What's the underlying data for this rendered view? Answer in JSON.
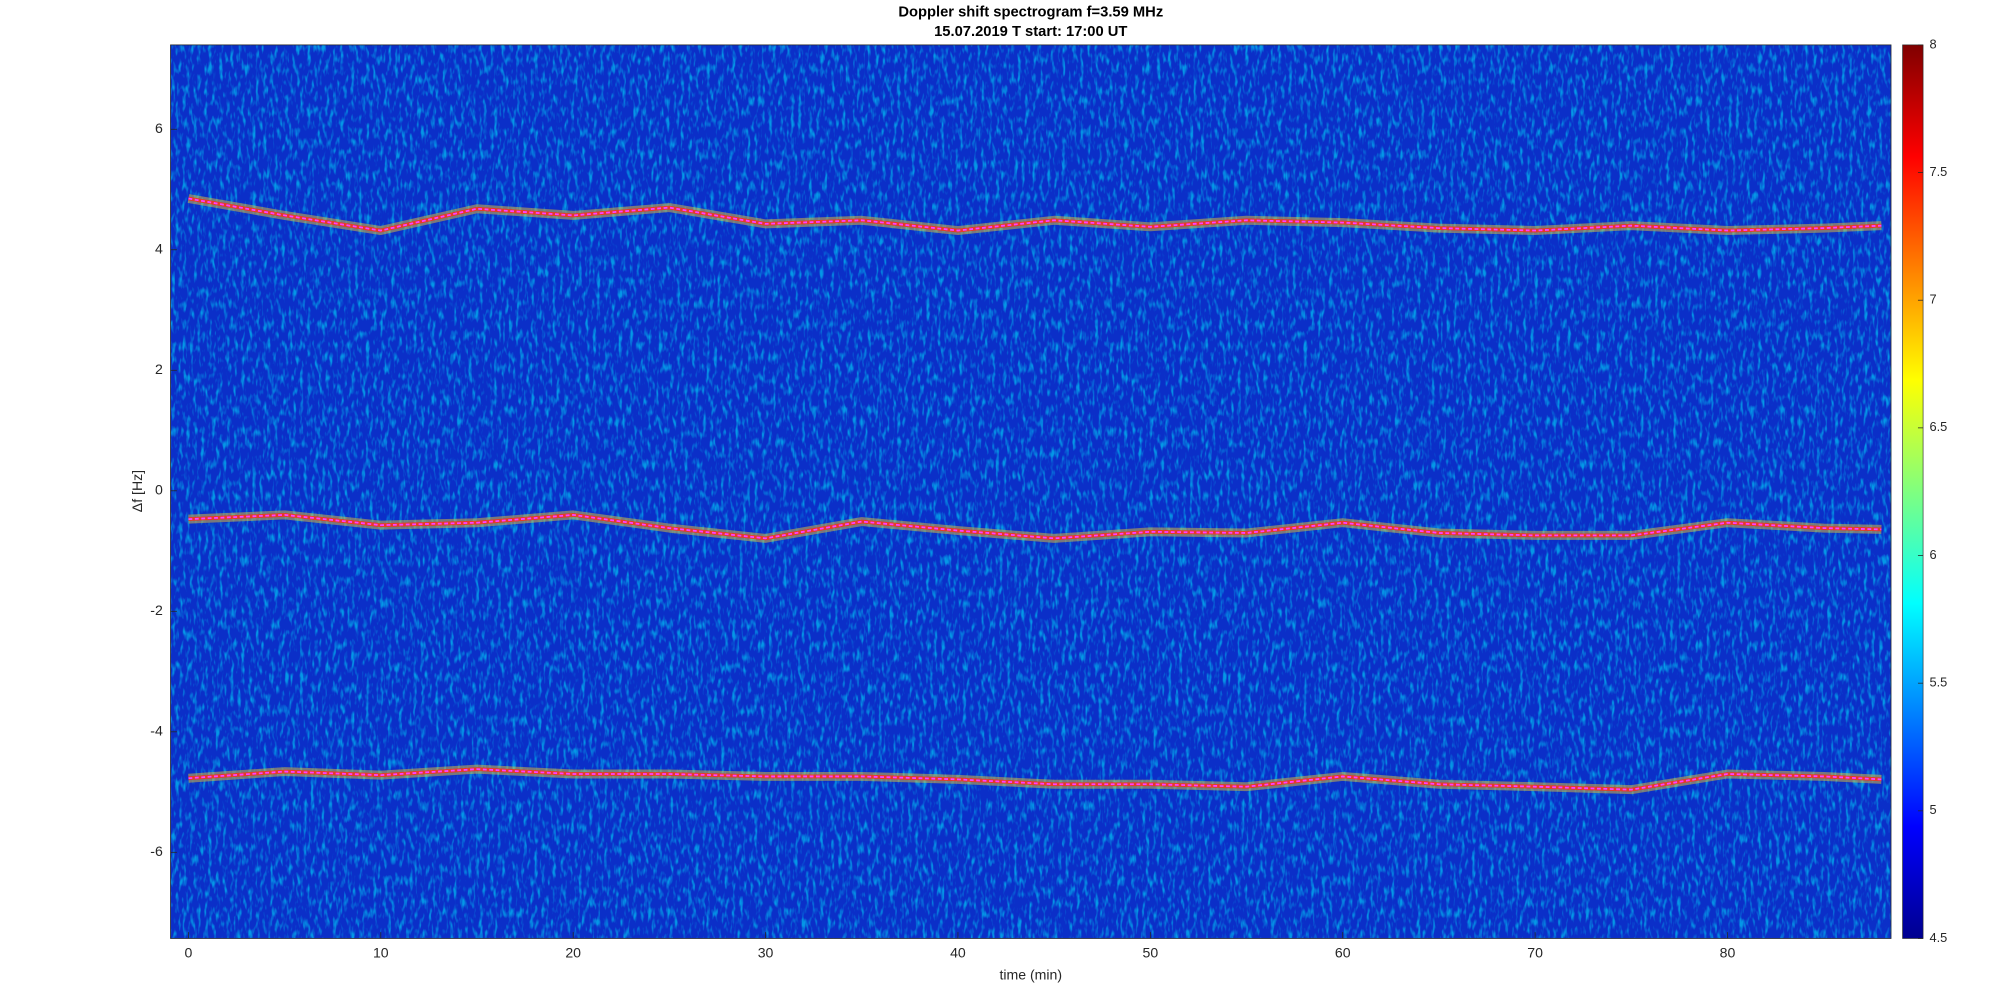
{
  "chart_data": {
    "type": "spectrogram",
    "title": "Doppler shift spectrogram f=3.59 MHz",
    "subtitle": "15.07.2019    T start: 17:00 UT",
    "x_label": "time (min)",
    "y_label": "Δf [Hz]",
    "xlim": [
      -0.93,
      88.5
    ],
    "xticks": [
      0,
      10,
      20,
      30,
      40,
      50,
      60,
      70,
      80
    ],
    "ylim": [
      -7.43,
      7.4
    ],
    "yticks": [
      -6,
      -4,
      -2,
      0,
      2,
      4,
      6
    ],
    "clim": [
      4.5,
      8
    ],
    "cticks": [
      4.5,
      5,
      5.5,
      6,
      6.5,
      7,
      7.5,
      8
    ],
    "colormap": "jet",
    "x": [
      0,
      5,
      10,
      15,
      20,
      25,
      30,
      35,
      40,
      45,
      50,
      55,
      60,
      65,
      70,
      75,
      80,
      85,
      88
    ],
    "series": [
      {
        "color": "#ff40ff",
        "values": [
          4.85,
          4.57,
          4.32,
          4.68,
          4.57,
          4.7,
          4.43,
          4.49,
          4.32,
          4.49,
          4.38,
          4.49,
          4.45,
          4.36,
          4.32,
          4.4,
          4.32,
          4.36,
          4.4
        ]
      },
      {
        "color": "#ff40ff",
        "values": [
          -0.47,
          -0.4,
          -0.57,
          -0.53,
          -0.4,
          -0.62,
          -0.79,
          -0.51,
          -0.66,
          -0.79,
          -0.68,
          -0.7,
          -0.53,
          -0.7,
          -0.74,
          -0.74,
          -0.53,
          -0.62,
          -0.64
        ]
      },
      {
        "color": "#ff40ff",
        "values": [
          -4.77,
          -4.66,
          -4.72,
          -4.62,
          -4.7,
          -4.7,
          -4.74,
          -4.74,
          -4.79,
          -4.87,
          -4.87,
          -4.91,
          -4.74,
          -4.87,
          -4.91,
          -4.96,
          -4.7,
          -4.74,
          -4.79
        ]
      }
    ]
  }
}
